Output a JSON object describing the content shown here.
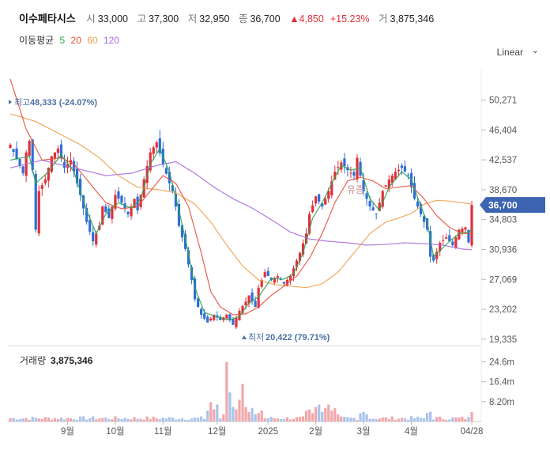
{
  "header": {
    "stock_name": "이수페타시스",
    "open_label": "시",
    "open": "33,000",
    "high_label": "고",
    "high": "37,300",
    "low_label": "저",
    "low": "32,950",
    "close_label": "종",
    "close": "36,700",
    "change": "▲4,850",
    "change_pct": "+15.23%",
    "volume_label": "거",
    "volume": "3,875,346"
  },
  "moving_averages": {
    "label": "이동평균",
    "periods": [
      {
        "value": "5",
        "color": "#2ea44f"
      },
      {
        "value": "20",
        "color": "#e8503a"
      },
      {
        "value": "60",
        "color": "#f0a050"
      },
      {
        "value": "120",
        "color": "#a66be0"
      }
    ]
  },
  "scale_mode": "Linear",
  "chart_data": {
    "type": "candlestick",
    "price_axis": {
      "ticks": [
        "50,271",
        "46,404",
        "42,537",
        "38,670",
        "34,803",
        "30,936",
        "27,069",
        "23,202",
        "19,335"
      ],
      "tick_values": [
        50271,
        46404,
        42537,
        38670,
        34803,
        30936,
        27069,
        23202,
        19335
      ],
      "range": [
        18500,
        53500
      ]
    },
    "current_price_tag": {
      "label": "36,700",
      "value": 36700
    },
    "high_annotation": {
      "label": "최고",
      "value_text": "48,333 (-24.07%)",
      "value": 48333
    },
    "low_annotation": {
      "label": "최저",
      "value_text": "20,422 (79.71%)",
      "value": 20422
    },
    "overlay_label": "유증",
    "x_labels": [
      "9월",
      "10월",
      "11월",
      "12월",
      "2025",
      "2월",
      "3월",
      "4월",
      "04/28"
    ],
    "x_label_index": [
      18,
      33,
      48,
      65,
      81,
      96,
      111,
      126,
      145
    ],
    "n_bars": 146,
    "anchors_close": [
      [
        0,
        44500
      ],
      [
        4,
        40800
      ],
      [
        5,
        43500
      ],
      [
        6,
        45000
      ],
      [
        7,
        41200
      ],
      [
        8,
        33500
      ],
      [
        9,
        38500
      ],
      [
        11,
        40000
      ],
      [
        13,
        43000
      ],
      [
        15,
        44000
      ],
      [
        17,
        41500
      ],
      [
        19,
        42500
      ],
      [
        21,
        39500
      ],
      [
        22,
        38000
      ],
      [
        24,
        34500
      ],
      [
        26,
        32000
      ],
      [
        28,
        34000
      ],
      [
        29,
        36500
      ],
      [
        31,
        35000
      ],
      [
        33,
        38000
      ],
      [
        35,
        37000
      ],
      [
        37,
        35500
      ],
      [
        39,
        37500
      ],
      [
        40,
        36000
      ],
      [
        42,
        40000
      ],
      [
        44,
        43500
      ],
      [
        46,
        44800
      ],
      [
        48,
        42000
      ],
      [
        50,
        39500
      ],
      [
        51,
        38500
      ],
      [
        52,
        36500
      ],
      [
        53,
        34000
      ],
      [
        55,
        31000
      ],
      [
        57,
        27000
      ],
      [
        58,
        24500
      ],
      [
        60,
        22500
      ],
      [
        62,
        21500
      ],
      [
        64,
        22500
      ],
      [
        66,
        21800
      ],
      [
        68,
        22500
      ],
      [
        70,
        21200
      ],
      [
        72,
        23000
      ],
      [
        74,
        24200
      ],
      [
        75,
        25000
      ],
      [
        77,
        23500
      ],
      [
        78,
        26000
      ],
      [
        80,
        28000
      ],
      [
        82,
        27000
      ],
      [
        84,
        27500
      ],
      [
        86,
        26500
      ],
      [
        88,
        27500
      ],
      [
        89,
        28500
      ],
      [
        91,
        30500
      ],
      [
        93,
        33000
      ],
      [
        94,
        35500
      ],
      [
        96,
        37800
      ],
      [
        98,
        36500
      ],
      [
        100,
        38500
      ],
      [
        102,
        41000
      ],
      [
        104,
        42200
      ],
      [
        106,
        41200
      ],
      [
        108,
        40500
      ],
      [
        109,
        42800
      ],
      [
        110,
        40500
      ],
      [
        111,
        38500
      ],
      [
        113,
        36500
      ],
      [
        115,
        35500
      ],
      [
        117,
        38500
      ],
      [
        119,
        40000
      ],
      [
        121,
        41000
      ],
      [
        123,
        41500
      ],
      [
        125,
        40500
      ],
      [
        127,
        37500
      ],
      [
        129,
        35500
      ],
      [
        131,
        33500
      ],
      [
        132,
        30000
      ],
      [
        133,
        29500
      ],
      [
        135,
        31800
      ],
      [
        137,
        32500
      ],
      [
        139,
        31500
      ],
      [
        141,
        33500
      ],
      [
        143,
        33800
      ],
      [
        144,
        31850
      ],
      [
        145,
        36700
      ]
    ],
    "ma5_anchors": [
      [
        0,
        42500
      ],
      [
        6,
        43000
      ],
      [
        8,
        39500
      ],
      [
        12,
        41000
      ],
      [
        16,
        43200
      ],
      [
        20,
        41000
      ],
      [
        24,
        36000
      ],
      [
        27,
        33000
      ],
      [
        30,
        35500
      ],
      [
        34,
        37000
      ],
      [
        38,
        36300
      ],
      [
        41,
        37500
      ],
      [
        44,
        42000
      ],
      [
        47,
        44000
      ],
      [
        50,
        41000
      ],
      [
        53,
        36000
      ],
      [
        56,
        30500
      ],
      [
        58,
        26000
      ],
      [
        61,
        22800
      ],
      [
        65,
        22200
      ],
      [
        69,
        21800
      ],
      [
        72,
        22300
      ],
      [
        75,
        24000
      ],
      [
        78,
        24800
      ],
      [
        82,
        27200
      ],
      [
        86,
        27100
      ],
      [
        89,
        27800
      ],
      [
        92,
        30500
      ],
      [
        95,
        35000
      ],
      [
        98,
        37000
      ],
      [
        101,
        39500
      ],
      [
        104,
        41800
      ],
      [
        107,
        41200
      ],
      [
        110,
        41500
      ],
      [
        113,
        37500
      ],
      [
        116,
        36000
      ],
      [
        119,
        39000
      ],
      [
        123,
        41000
      ],
      [
        126,
        40000
      ],
      [
        129,
        36500
      ],
      [
        131,
        34500
      ],
      [
        133,
        30000
      ],
      [
        135,
        30800
      ],
      [
        138,
        32000
      ],
      [
        141,
        33000
      ],
      [
        144,
        33200
      ],
      [
        145,
        33500
      ]
    ],
    "ma20_anchors": [
      [
        0,
        53000
      ],
      [
        5,
        46500
      ],
      [
        10,
        42500
      ],
      [
        16,
        42800
      ],
      [
        20,
        42000
      ],
      [
        25,
        39500
      ],
      [
        30,
        37000
      ],
      [
        35,
        36200
      ],
      [
        40,
        36500
      ],
      [
        44,
        38500
      ],
      [
        48,
        40500
      ],
      [
        52,
        39500
      ],
      [
        56,
        36500
      ],
      [
        60,
        30500
      ],
      [
        63,
        25500
      ],
      [
        66,
        23500
      ],
      [
        70,
        22500
      ],
      [
        74,
        22600
      ],
      [
        78,
        23500
      ],
      [
        82,
        25000
      ],
      [
        86,
        26200
      ],
      [
        90,
        27500
      ],
      [
        94,
        29800
      ],
      [
        98,
        33000
      ],
      [
        102,
        37000
      ],
      [
        106,
        39800
      ],
      [
        110,
        40300
      ],
      [
        114,
        39800
      ],
      [
        118,
        38800
      ],
      [
        122,
        39000
      ],
      [
        126,
        39200
      ],
      [
        130,
        37500
      ],
      [
        134,
        35300
      ],
      [
        138,
        33800
      ],
      [
        142,
        33000
      ],
      [
        145,
        33000
      ]
    ],
    "ma60_anchors": [
      [
        0,
        48500
      ],
      [
        8,
        47500
      ],
      [
        15,
        46000
      ],
      [
        22,
        44500
      ],
      [
        28,
        42800
      ],
      [
        34,
        40500
      ],
      [
        40,
        39000
      ],
      [
        46,
        38700
      ],
      [
        52,
        38300
      ],
      [
        58,
        36800
      ],
      [
        63,
        34500
      ],
      [
        68,
        31500
      ],
      [
        73,
        28800
      ],
      [
        78,
        27000
      ],
      [
        83,
        26400
      ],
      [
        88,
        26200
      ],
      [
        93,
        26000
      ],
      [
        98,
        26500
      ],
      [
        103,
        28000
      ],
      [
        108,
        30500
      ],
      [
        113,
        33000
      ],
      [
        118,
        34500
      ],
      [
        122,
        35000
      ],
      [
        126,
        35600
      ],
      [
        130,
        36800
      ],
      [
        134,
        37300
      ],
      [
        138,
        37200
      ],
      [
        142,
        37000
      ],
      [
        145,
        36800
      ]
    ],
    "ma120_anchors": [
      [
        0,
        41500
      ],
      [
        10,
        42500
      ],
      [
        20,
        41500
      ],
      [
        30,
        40500
      ],
      [
        38,
        40800
      ],
      [
        46,
        41800
      ],
      [
        52,
        42300
      ],
      [
        58,
        40800
      ],
      [
        64,
        39000
      ],
      [
        70,
        37500
      ],
      [
        76,
        36300
      ],
      [
        82,
        34800
      ],
      [
        88,
        33200
      ],
      [
        94,
        32300
      ],
      [
        100,
        32000
      ],
      [
        106,
        31800
      ],
      [
        112,
        31500
      ],
      [
        118,
        31600
      ],
      [
        124,
        31800
      ],
      [
        130,
        31700
      ],
      [
        136,
        31500
      ],
      [
        142,
        31000
      ],
      [
        145,
        30900
      ]
    ],
    "volume_axis": {
      "ticks": [
        "24.6m",
        "16.4m",
        "8.20m"
      ],
      "tick_values": [
        24.6,
        16.4,
        8.2
      ],
      "max": 28.7
    },
    "volume_label": "거래량",
    "volume_value_text": "3,875,346",
    "volume_spikes": [
      [
        62,
        4.5
      ],
      [
        63,
        8.0
      ],
      [
        64,
        5.0
      ],
      [
        65,
        7.0
      ],
      [
        67,
        3.0
      ],
      [
        68,
        24.6
      ],
      [
        69,
        12.0
      ],
      [
        70,
        6.0
      ],
      [
        71,
        5.0
      ],
      [
        72,
        9.0
      ],
      [
        73,
        15.5
      ],
      [
        74,
        6.0
      ],
      [
        75,
        4.0
      ],
      [
        76,
        5.5
      ],
      [
        77,
        3.0
      ],
      [
        78,
        3.5
      ],
      [
        79,
        4.5
      ],
      [
        93,
        4.5
      ],
      [
        94,
        5.0
      ],
      [
        95,
        3.5
      ],
      [
        96,
        6.0
      ],
      [
        97,
        7.0
      ],
      [
        98,
        4.0
      ],
      [
        99,
        5.5
      ],
      [
        100,
        7.0
      ],
      [
        101,
        4.5
      ],
      [
        102,
        5.5
      ],
      [
        103,
        3.0
      ],
      [
        110,
        3.5
      ],
      [
        111,
        4.0
      ],
      [
        112,
        3.0
      ],
      [
        131,
        3.5
      ],
      [
        132,
        4.0
      ],
      [
        145,
        3.9
      ]
    ]
  }
}
